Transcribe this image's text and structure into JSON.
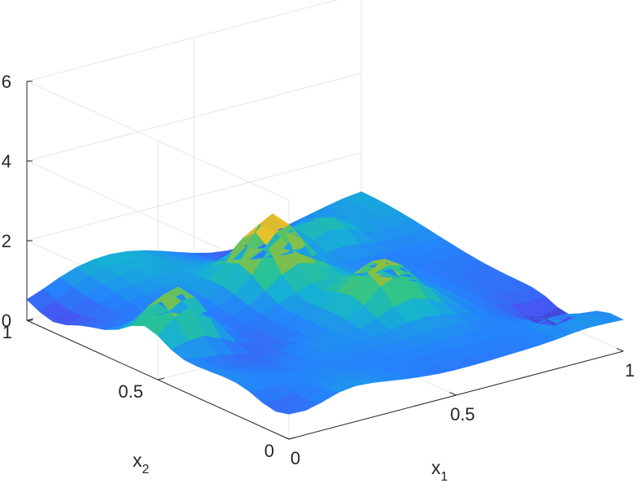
{
  "chart_data": {
    "type": "surface",
    "title": "",
    "xlabel": "x",
    "xlabel_subscript": "1",
    "ylabel": "x",
    "ylabel_subscript": "2",
    "zlabel": "",
    "xlim": [
      0,
      1
    ],
    "ylim": [
      0,
      1
    ],
    "zlim": [
      0,
      6
    ],
    "x_ticks": [
      "0",
      "0.5",
      "1"
    ],
    "y_ticks": [
      "0",
      "0.5",
      "1"
    ],
    "z_ticks": [
      "0",
      "2",
      "4",
      "6"
    ],
    "grid": true,
    "colormap": "parula",
    "grid_resolution": 21,
    "peaks": [
      {
        "x1": 0.1,
        "x2": 0.55,
        "height": 2.2
      },
      {
        "x1": 0.5,
        "x2": 0.7,
        "height": 2.3
      },
      {
        "x1": 0.6,
        "x2": 0.4,
        "height": 1.7
      },
      {
        "x1": 0.9,
        "x2": 0.1,
        "height": 1.0
      },
      {
        "x1": 0.3,
        "x2": 0.3,
        "height": 0.9
      },
      {
        "x1": 0.75,
        "x2": 0.85,
        "height": 1.5
      }
    ],
    "colors": {
      "axis": "#262626",
      "grid": "#e6e6e6",
      "low": "#3e26a8",
      "high": "#f9fb0e"
    }
  }
}
